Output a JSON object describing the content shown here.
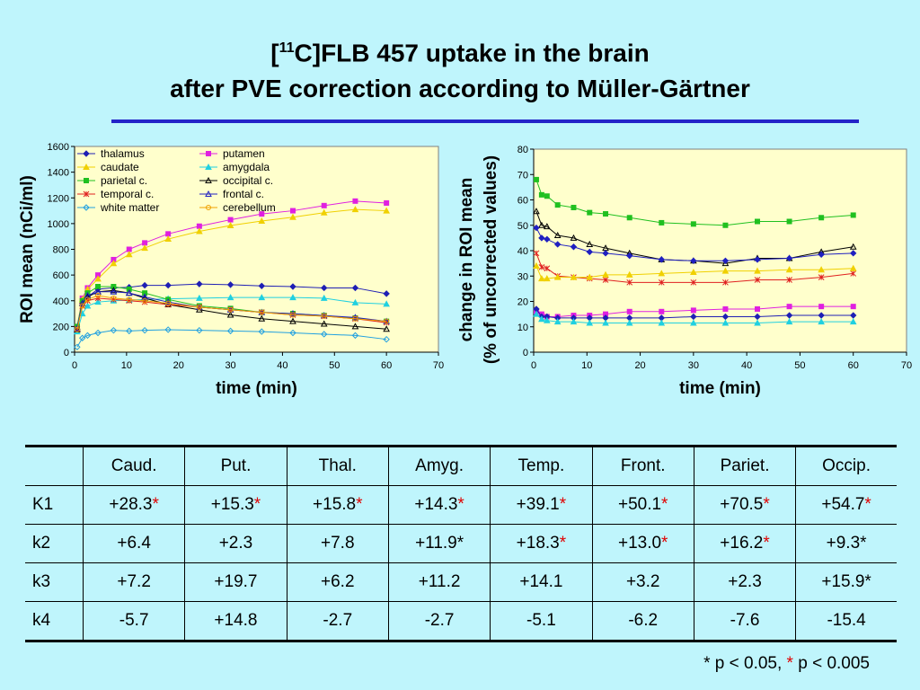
{
  "title": {
    "line1_pre": "[",
    "line1_sup": "11",
    "line1_post": "C]FLB 457 uptake in the brain",
    "line2": "after PVE correction according to Müller-Gärtner"
  },
  "chart_data": [
    {
      "type": "line",
      "ylabel": "ROI mean (nCi/ml)",
      "xlabel": "time (min)",
      "xlim": [
        0,
        70
      ],
      "ylim": [
        0,
        1600
      ],
      "xticks": [
        0,
        10,
        20,
        30,
        40,
        50,
        60,
        70
      ],
      "yticks": [
        0,
        200,
        400,
        600,
        800,
        1000,
        1200,
        1400,
        1600
      ],
      "grid": false,
      "legend_placement": "top-left",
      "x": [
        0.5,
        1.5,
        2.5,
        4.5,
        7.5,
        10.5,
        13.5,
        18,
        24,
        30,
        36,
        42,
        48,
        54,
        60
      ],
      "series": [
        {
          "name": "thalamus",
          "color": "#1f1fb4",
          "marker": "diamond",
          "values": [
            180,
            380,
            430,
            490,
            500,
            505,
            520,
            520,
            530,
            525,
            515,
            510,
            500,
            500,
            455
          ]
        },
        {
          "name": "putamen",
          "color": "#e020e0",
          "marker": "square",
          "values": [
            200,
            420,
            500,
            600,
            720,
            800,
            850,
            920,
            980,
            1030,
            1075,
            1100,
            1140,
            1175,
            1160
          ]
        },
        {
          "name": "caudate",
          "color": "#f0d000",
          "marker": "triangle",
          "values": [
            190,
            410,
            490,
            570,
            690,
            760,
            810,
            880,
            940,
            985,
            1020,
            1050,
            1085,
            1110,
            1100
          ]
        },
        {
          "name": "amygdala",
          "color": "#20d0e0",
          "marker": "triangle",
          "values": [
            160,
            300,
            360,
            390,
            400,
            405,
            410,
            415,
            420,
            425,
            425,
            425,
            420,
            385,
            375
          ]
        },
        {
          "name": "parietal c.",
          "color": "#20c020",
          "marker": "square",
          "values": [
            200,
            400,
            460,
            510,
            510,
            490,
            460,
            410,
            360,
            340,
            310,
            300,
            285,
            265,
            240
          ]
        },
        {
          "name": "occipital c.",
          "color": "#000000",
          "marker": "triangle-open",
          "values": [
            175,
            380,
            430,
            470,
            480,
            460,
            420,
            370,
            330,
            290,
            260,
            240,
            220,
            200,
            180
          ]
        },
        {
          "name": "temporal c.",
          "color": "#e02020",
          "marker": "asterisk",
          "values": [
            180,
            360,
            400,
            420,
            410,
            400,
            390,
            370,
            350,
            330,
            310,
            290,
            280,
            260,
            230
          ]
        },
        {
          "name": "frontal c.",
          "color": "#2020c0",
          "marker": "triangle-open",
          "values": [
            185,
            380,
            440,
            470,
            470,
            460,
            430,
            390,
            350,
            330,
            310,
            300,
            285,
            270,
            240
          ]
        },
        {
          "name": "white matter",
          "color": "#20a0e0",
          "marker": "diamond-open",
          "values": [
            40,
            110,
            130,
            150,
            170,
            165,
            170,
            175,
            170,
            165,
            160,
            150,
            140,
            130,
            100
          ]
        },
        {
          "name": "cerebellum",
          "color": "#f0a000",
          "marker": "circle-open",
          "values": [
            175,
            360,
            410,
            440,
            420,
            410,
            400,
            380,
            350,
            330,
            310,
            290,
            280,
            260,
            240
          ]
        }
      ]
    },
    {
      "type": "line",
      "ylabel_line1": "change in ROI mean",
      "ylabel_line2": "(% of uncorrected values)",
      "xlabel": "time (min)",
      "xlim": [
        0,
        70
      ],
      "ylim": [
        0,
        80
      ],
      "xticks": [
        0,
        10,
        20,
        30,
        40,
        50,
        60,
        70
      ],
      "yticks": [
        0,
        10,
        20,
        30,
        40,
        50,
        60,
        70,
        80
      ],
      "grid": false,
      "x": [
        0.5,
        1.5,
        2.5,
        4.5,
        7.5,
        10.5,
        13.5,
        18,
        24,
        30,
        36,
        42,
        48,
        54,
        60
      ],
      "series": [
        {
          "color": "#20c020",
          "marker": "square",
          "values": [
            68,
            62,
            61.5,
            58,
            57,
            55,
            54.5,
            53,
            51,
            50.5,
            50,
            51.5,
            51.5,
            53,
            54
          ]
        },
        {
          "color": "#000000",
          "marker": "triangle-open",
          "values": [
            55.5,
            50,
            49.5,
            46,
            45,
            42.5,
            41,
            39,
            36.5,
            36,
            35,
            37,
            37,
            39.5,
            41.5
          ]
        },
        {
          "color": "#2020c0",
          "marker": "diamond",
          "values": [
            49,
            45,
            44.5,
            42.5,
            41.5,
            39.5,
            39,
            38,
            36.5,
            36,
            36,
            36.5,
            37,
            38.5,
            39
          ]
        },
        {
          "color": "#e02020",
          "marker": "asterisk",
          "values": [
            39,
            33.5,
            33,
            30,
            29.5,
            29,
            28.5,
            27.5,
            27.5,
            27.5,
            27.5,
            28.5,
            28.5,
            29.5,
            31
          ]
        },
        {
          "color": "#f0d000",
          "marker": "triangle",
          "values": [
            34,
            29,
            29,
            29.5,
            29.5,
            29.5,
            30.5,
            30.5,
            31,
            31.5,
            32,
            32,
            32.5,
            32.5,
            33
          ]
        },
        {
          "color": "#e020e0",
          "marker": "square",
          "values": [
            16,
            15,
            14,
            14,
            14.5,
            14.5,
            15,
            16,
            16,
            16.5,
            17,
            17,
            18,
            18,
            18
          ]
        },
        {
          "color": "#1f1fb4",
          "marker": "diamond",
          "values": [
            17,
            14,
            14,
            13.5,
            13.5,
            13.5,
            13.5,
            13.5,
            13.5,
            14,
            14,
            14,
            14.5,
            14.5,
            14.5
          ]
        },
        {
          "color": "#20d0e0",
          "marker": "triangle",
          "values": [
            15,
            13,
            12.5,
            12,
            12,
            11.5,
            11.5,
            11.5,
            11.5,
            11.5,
            11.5,
            11.5,
            12,
            12,
            12
          ]
        }
      ]
    }
  ],
  "table": {
    "headers": [
      "",
      "Caud.",
      "Put.",
      "Thal.",
      "Amyg.",
      "Temp.",
      "Front.",
      "Pariet.",
      "Occip."
    ],
    "rows": [
      {
        "label": "K1",
        "cells": [
          [
            "+28.3",
            "*"
          ],
          [
            "+15.3",
            "*"
          ],
          [
            "+15.8",
            "*"
          ],
          [
            "+14.3",
            "*"
          ],
          [
            "+39.1",
            "*"
          ],
          [
            "+50.1",
            "*"
          ],
          [
            "+70.5",
            "*"
          ],
          [
            "+54.7",
            "*"
          ]
        ]
      },
      {
        "label": "k2",
        "cells": [
          [
            "+6.4",
            ""
          ],
          [
            "+2.3",
            ""
          ],
          [
            "+7.8",
            ""
          ],
          [
            "+11.9*",
            ""
          ],
          [
            "+18.3",
            "*"
          ],
          [
            "+13.0",
            "*"
          ],
          [
            "+16.2",
            "*"
          ],
          [
            "+9.3*",
            ""
          ]
        ]
      },
      {
        "label": "k3",
        "cells": [
          [
            "+7.2",
            ""
          ],
          [
            "+19.7",
            ""
          ],
          [
            "+6.2",
            ""
          ],
          [
            "+11.2",
            ""
          ],
          [
            "+14.1",
            ""
          ],
          [
            "+3.2",
            ""
          ],
          [
            "+2.3",
            ""
          ],
          [
            "+15.9*",
            ""
          ]
        ]
      },
      {
        "label": "k4",
        "cells": [
          [
            "-5.7",
            ""
          ],
          [
            "+14.8",
            ""
          ],
          [
            "-2.7",
            ""
          ],
          [
            "-2.7",
            ""
          ],
          [
            "-5.1",
            ""
          ],
          [
            "-6.2",
            ""
          ],
          [
            "-7.6",
            ""
          ],
          [
            "-15.4",
            ""
          ]
        ]
      }
    ]
  },
  "footnote": {
    "part1": "* p < 0.05, ",
    "star": "*",
    "part2": " p < 0.005"
  }
}
